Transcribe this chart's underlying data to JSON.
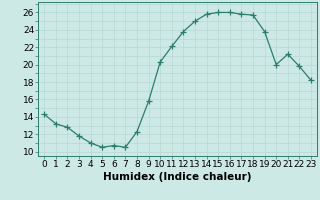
{
  "x": [
    0,
    1,
    2,
    3,
    4,
    5,
    6,
    7,
    8,
    9,
    10,
    11,
    12,
    13,
    14,
    15,
    16,
    17,
    18,
    19,
    20,
    21,
    22,
    23
  ],
  "y": [
    14.3,
    13.2,
    12.8,
    11.8,
    11.0,
    10.5,
    10.7,
    10.5,
    12.3,
    15.8,
    20.3,
    22.1,
    23.8,
    25.0,
    25.8,
    26.0,
    26.0,
    25.8,
    25.7,
    23.8,
    20.0,
    21.2,
    19.8,
    18.2
  ],
  "line_color": "#2d7d6e",
  "marker": "+",
  "marker_size": 4,
  "marker_linewidth": 0.9,
  "line_width": 0.9,
  "bg_color": "#cce9e5",
  "grid_color": "#b8d8d4",
  "yticks": [
    10,
    12,
    14,
    16,
    18,
    20,
    22,
    24,
    26
  ],
  "xlabel": "Humidex (Indice chaleur)",
  "ylim": [
    9.5,
    27.2
  ],
  "xlim": [
    -0.5,
    23.5
  ],
  "xlabel_fontsize": 7.5,
  "tick_fontsize": 6.5,
  "xlabel_fontweight": "bold"
}
